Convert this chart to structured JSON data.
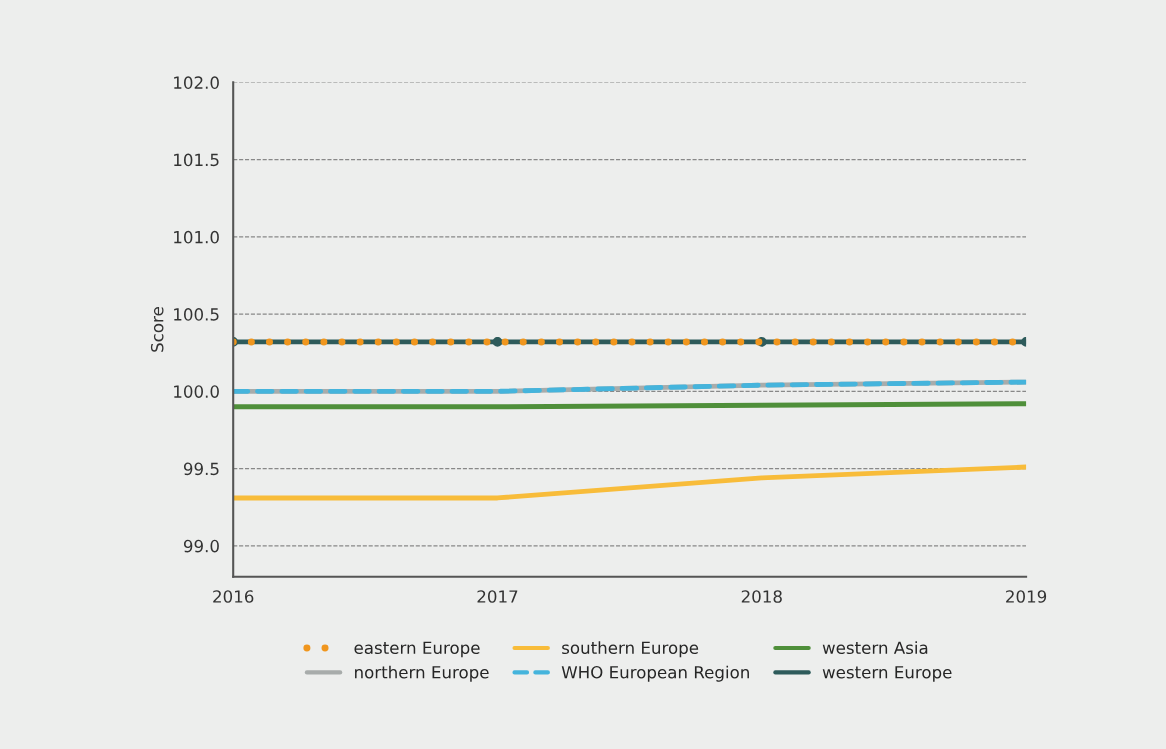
{
  "chart_data": {
    "type": "line",
    "ylabel": "Score",
    "x": [
      2016,
      2017,
      2018,
      2019
    ],
    "xlim": [
      2016,
      2019
    ],
    "xticks": [
      2016,
      2017,
      2018,
      2019
    ],
    "ylim": [
      98.8,
      102.0
    ],
    "yticks": [
      {
        "value": 99.0,
        "label": "99.0"
      },
      {
        "value": 99.5,
        "label": "99.5"
      },
      {
        "value": 100.0,
        "label": "100.0"
      },
      {
        "value": 100.5,
        "label": "100.5"
      },
      {
        "value": 101.0,
        "label": "101.0"
      },
      {
        "value": 101.5,
        "label": "101.5"
      },
      {
        "value": 102.0,
        "label": "102.0"
      }
    ],
    "grid": "y",
    "legend": "bottom",
    "series": [
      {
        "name": "eastern Europe",
        "color": "#f0961e",
        "values": [
          100.32,
          100.32,
          100.32,
          100.32
        ],
        "line_style": "dotted"
      },
      {
        "name": "northern Europe",
        "color": "#a8acab",
        "values": [
          100.0,
          100.0,
          100.04,
          100.06
        ],
        "line_style": "solid"
      },
      {
        "name": "southern Europe",
        "color": "#f8bc3a",
        "values": [
          99.31,
          99.31,
          99.44,
          99.51
        ],
        "line_style": "solid"
      },
      {
        "name": "WHO European Region",
        "color": "#45b4dc",
        "values": [
          100.0,
          100.0,
          100.04,
          100.06
        ],
        "line_style": "dashed"
      },
      {
        "name": "western Asia",
        "color": "#4f8f3a",
        "values": [
          99.9,
          99.9,
          99.91,
          99.92
        ],
        "line_style": "solid"
      },
      {
        "name": "western Europe",
        "color": "#2e5b5b",
        "values": [
          100.32,
          100.32,
          100.32,
          100.32
        ],
        "line_style": "solid",
        "marker": "circle"
      }
    ]
  }
}
